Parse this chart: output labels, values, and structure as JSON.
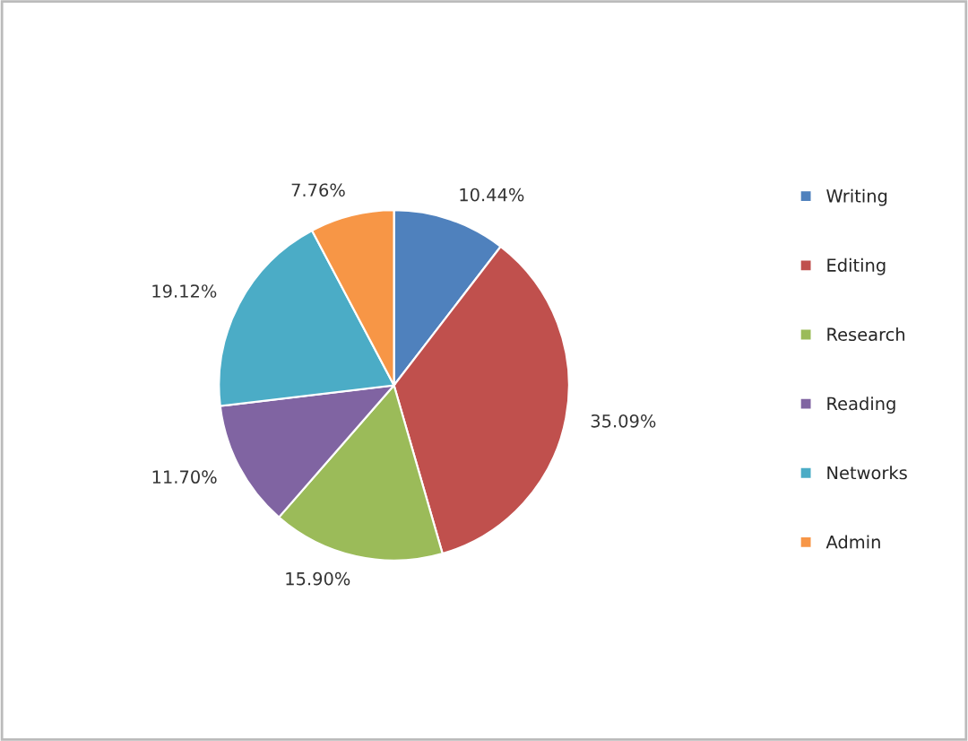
{
  "chart_data": {
    "type": "pie",
    "categories": [
      "Writing",
      "Editing",
      "Research",
      "Reading",
      "Networks",
      "Admin"
    ],
    "values": [
      10.44,
      35.09,
      15.9,
      11.7,
      19.12,
      7.76
    ],
    "value_labels": [
      "10.44%",
      "35.09%",
      "15.90%",
      "11.70%",
      "19.12%",
      "7.76%"
    ],
    "colors": [
      "#4f81bd",
      "#c0504d",
      "#9bbb59",
      "#8064a2",
      "#4bacc6",
      "#f79646"
    ],
    "legend": "right"
  }
}
